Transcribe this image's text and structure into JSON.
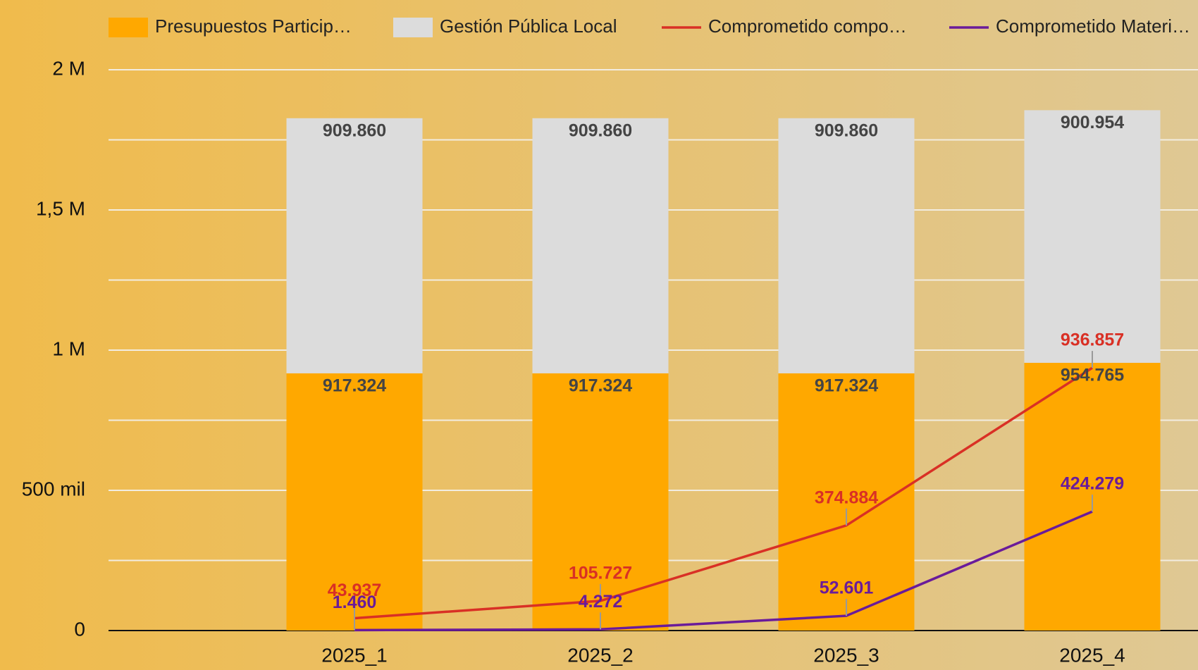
{
  "chart_data": {
    "type": "bar",
    "stacked": true,
    "categories": [
      "2025_1",
      "2025_2",
      "2025_3",
      "2025_4"
    ],
    "series": [
      {
        "name": "Presupuestos Particip…",
        "type": "bar",
        "color": "#ffa800",
        "values": [
          917324,
          917324,
          917324,
          954765
        ],
        "value_labels": [
          "917.324",
          "917.324",
          "917.324",
          "954.765"
        ]
      },
      {
        "name": "Gestión Pública Local",
        "type": "bar",
        "color": "#dcdcdc",
        "values": [
          909860,
          909860,
          909860,
          900954
        ],
        "value_labels": [
          "909.860",
          "909.860",
          "909.860",
          "900.954"
        ]
      },
      {
        "name": "Comprometido compo…",
        "type": "line",
        "color": "#d93025",
        "values": [
          43937,
          105727,
          374884,
          936857
        ],
        "value_labels": [
          "43.937",
          "105.727",
          "374.884",
          "936.857"
        ]
      },
      {
        "name": "Comprometido Materi…",
        "type": "line",
        "color": "#6a1b9a",
        "values": [
          1460,
          4272,
          52601,
          424279
        ],
        "value_labels": [
          "1.460",
          "4.272",
          "52.601",
          "424.279"
        ]
      }
    ],
    "ylim": [
      0,
      2000000
    ],
    "yticks": [
      {
        "value": 0,
        "label": "0"
      },
      {
        "value": 500000,
        "label": "500 mil"
      },
      {
        "value": 1000000,
        "label": "1 M"
      },
      {
        "value": 1500000,
        "label": "1,5 M"
      },
      {
        "value": 2000000,
        "label": "2 M"
      }
    ],
    "minor_yticks": [
      250000,
      750000,
      1250000,
      1750000
    ],
    "grid": true,
    "legend": "top"
  }
}
